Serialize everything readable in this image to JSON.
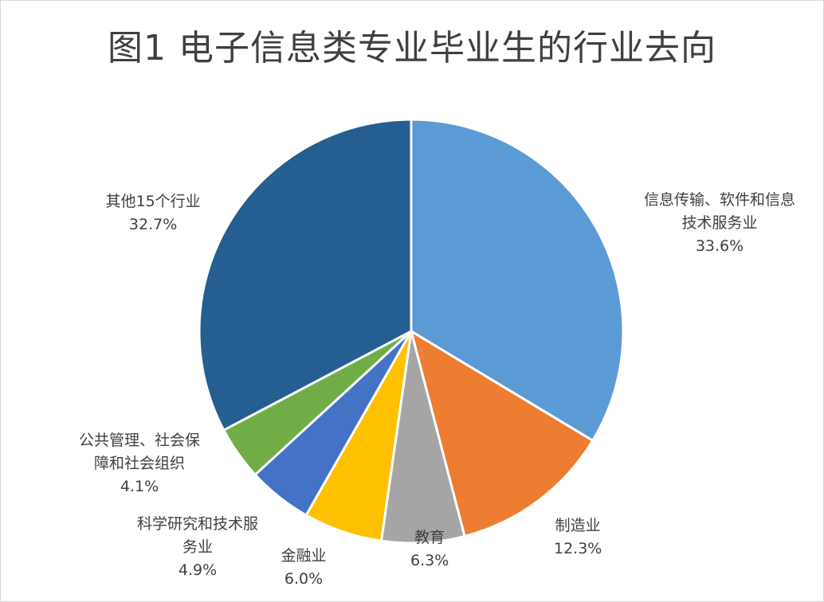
{
  "chart_data": {
    "type": "pie",
    "title": "图1 电子信息类专业毕业生的行业去向",
    "start_angle_deg": 0,
    "direction": "clockwise",
    "slices": [
      {
        "label_lines": [
          "信息传输、软件和信息",
          "技术服务业"
        ],
        "value_label": "33.6%",
        "value": 33.6,
        "color": "#5B9BD5"
      },
      {
        "label_lines": [
          "制造业"
        ],
        "value_label": "12.3%",
        "value": 12.3,
        "color": "#ED7D31"
      },
      {
        "label_lines": [
          "教育"
        ],
        "value_label": "6.3%",
        "value": 6.3,
        "color": "#A5A5A5"
      },
      {
        "label_lines": [
          "金融业"
        ],
        "value_label": "6.0%",
        "value": 6.0,
        "color": "#FFC000"
      },
      {
        "label_lines": [
          "科学研究和技术服",
          "务业"
        ],
        "value_label": "4.9%",
        "value": 4.9,
        "color": "#4472C4"
      },
      {
        "label_lines": [
          "公共管理、社会保",
          "障和社会组织"
        ],
        "value_label": "4.1%",
        "value": 4.1,
        "color": "#70AD47"
      },
      {
        "label_lines": [
          "其他15个行业"
        ],
        "value_label": "32.7%",
        "value": 32.7,
        "color": "#255E91"
      }
    ]
  }
}
